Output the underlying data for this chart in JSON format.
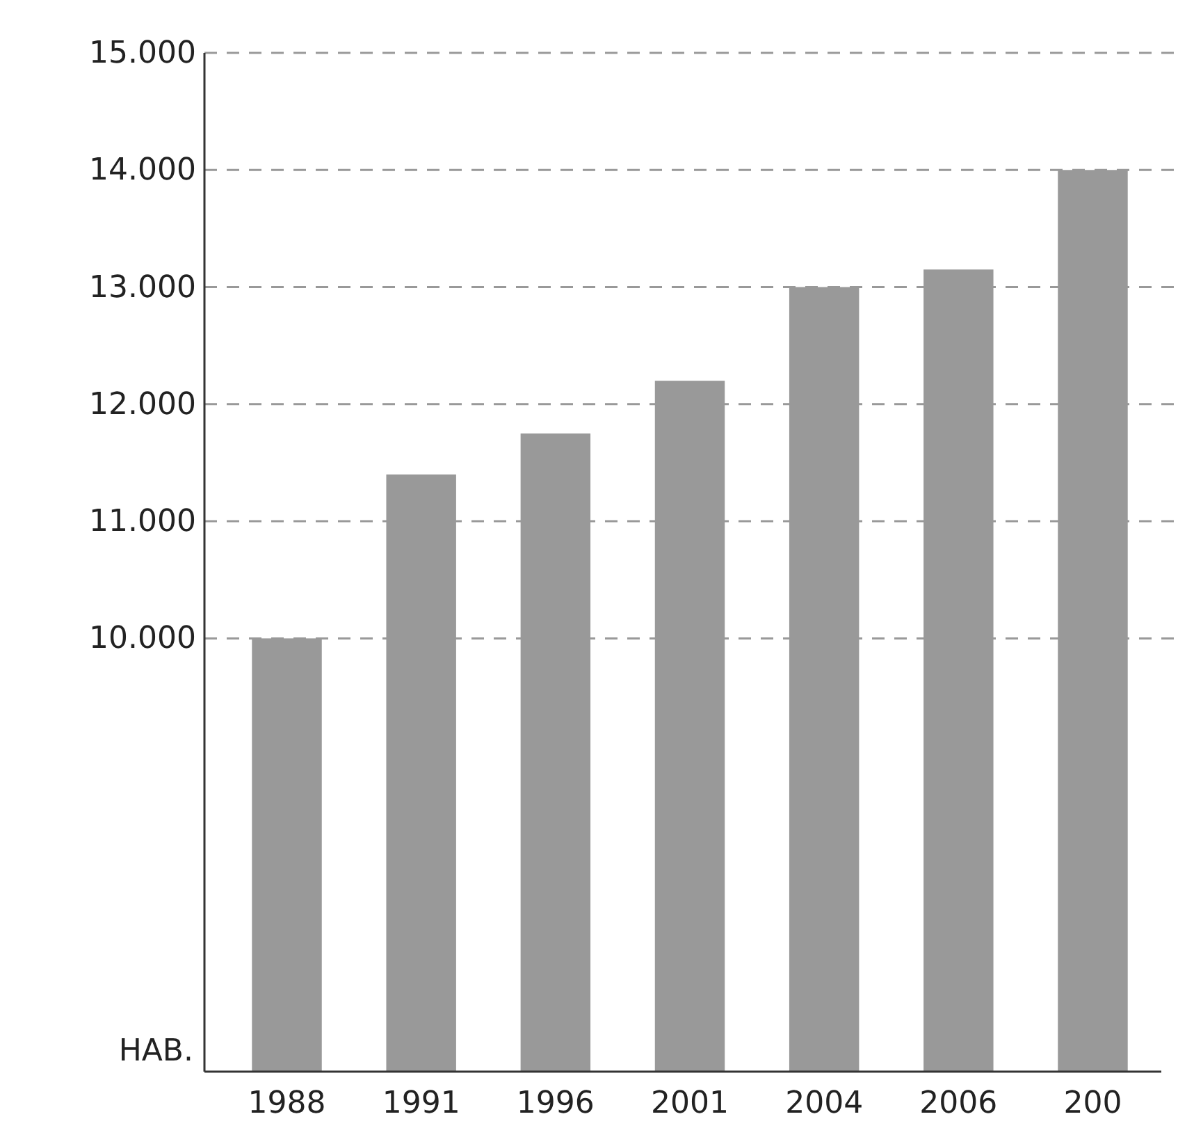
{
  "chart_data": {
    "type": "bar",
    "ylabel": "HAB.",
    "categories": [
      "1988",
      "1991",
      "1996",
      "2001",
      "2004",
      "2006",
      "200"
    ],
    "values": [
      10000,
      11400,
      11750,
      12200,
      13000,
      13150,
      14000
    ],
    "color": "#999999",
    "ylim": [
      6300,
      15000
    ],
    "yticks": [
      {
        "value": 10000,
        "label": "10.000"
      },
      {
        "value": 11000,
        "label": "11.000"
      },
      {
        "value": 12000,
        "label": "12.000"
      },
      {
        "value": 13000,
        "label": "13.000"
      },
      {
        "value": 14000,
        "label": "14.000"
      },
      {
        "value": 15000,
        "label": "15.000"
      }
    ],
    "grid": "y"
  }
}
